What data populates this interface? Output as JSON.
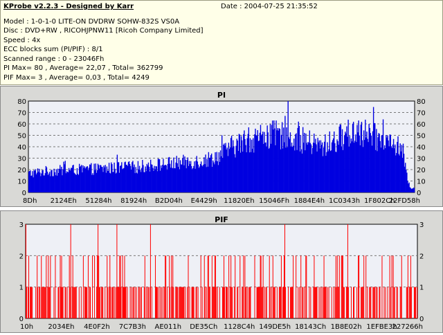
{
  "header": {
    "title": "KProbe v2.2.3 - Designed by Karr",
    "date": "Date : 2004-07-25 21:35:52",
    "lines": [
      "Model : 1-0-1-0 LITE-ON DVDRW SOHW-832S  VS0A",
      "Disc : DVD+RW , RICOHJPNW11 [Ricoh Company Limited]",
      "Speed : 4x",
      "ECC blocks sum (PI/PIF) : 8/1",
      "Scanned range : 0 - 23046Fh",
      "PI Max= 80 , Average= 22,07 , Total= 362799",
      "PIF Max= 3 , Average= 0,03 , Total= 4249"
    ]
  },
  "chart_data": [
    {
      "type": "bar",
      "title": "PI",
      "color": "#0000e0",
      "ylim": [
        0,
        80
      ],
      "yticks": [
        0,
        10,
        20,
        30,
        40,
        50,
        60,
        70,
        80
      ],
      "grid": true,
      "x_tick_labels": [
        "8Dh",
        "2124Eh",
        "51284h",
        "81924h",
        "B2D04h",
        "E4429h",
        "11820Eh",
        "15046Fh",
        "1884E4h",
        "1C0343h",
        "1F802Ch",
        "22FD58h"
      ],
      "profile": [
        [
          0.0,
          17
        ],
        [
          0.04,
          19
        ],
        [
          0.1,
          20
        ],
        [
          0.16,
          21
        ],
        [
          0.22,
          22
        ],
        [
          0.28,
          23
        ],
        [
          0.34,
          25
        ],
        [
          0.4,
          27
        ],
        [
          0.46,
          29
        ],
        [
          0.5,
          34
        ],
        [
          0.52,
          40
        ],
        [
          0.56,
          46
        ],
        [
          0.6,
          50
        ],
        [
          0.64,
          52
        ],
        [
          0.68,
          50
        ],
        [
          0.72,
          46
        ],
        [
          0.76,
          41
        ],
        [
          0.79,
          46
        ],
        [
          0.82,
          52
        ],
        [
          0.85,
          55
        ],
        [
          0.88,
          52
        ],
        [
          0.92,
          47
        ],
        [
          0.95,
          42
        ],
        [
          0.97,
          38
        ],
        [
          0.98,
          15
        ],
        [
          0.99,
          4
        ],
        [
          1.0,
          4
        ]
      ],
      "peaks": [
        {
          "pos": 0.672,
          "value": 80
        },
        {
          "pos": 0.664,
          "value": 67
        },
        {
          "pos": 0.7,
          "value": 62
        },
        {
          "pos": 0.855,
          "value": 63
        },
        {
          "pos": 0.882,
          "value": 60
        },
        {
          "pos": 0.5,
          "value": 50
        },
        {
          "pos": 0.57,
          "value": 57
        }
      ],
      "samples": 520
    },
    {
      "type": "bar",
      "title": "PIF",
      "color": "#ff0000",
      "ylim": [
        0,
        3
      ],
      "yticks": [
        0,
        1,
        2,
        3
      ],
      "grid": true,
      "x_tick_labels": [
        "10h",
        "2034Eh",
        "4E0F2h",
        "7C7B3h",
        "AE011h",
        "DE35Ch",
        "1128C4h",
        "149DE5h",
        "18143Ch",
        "1B8E02h",
        "1EFBE3h",
        "227266h"
      ],
      "value3_positions": [
        0.0,
        0.115,
        0.185,
        0.232,
        0.318,
        0.662,
        0.823
      ],
      "samples": 560
    }
  ]
}
